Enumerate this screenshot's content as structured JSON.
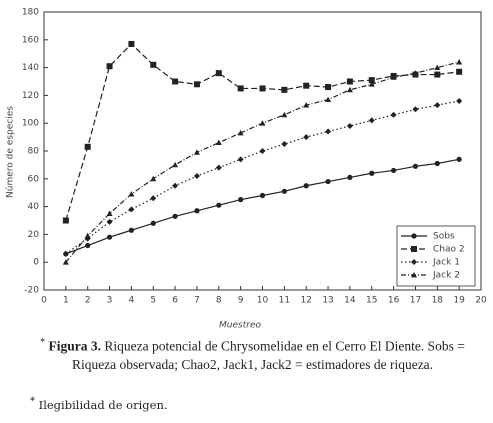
{
  "chart_data": {
    "type": "line",
    "x_label": "Muestreo",
    "y_label": "Número de especies",
    "x": [
      1,
      2,
      3,
      4,
      5,
      6,
      7,
      8,
      9,
      10,
      11,
      12,
      13,
      14,
      15,
      16,
      17,
      18,
      19
    ],
    "xlim": [
      0,
      20
    ],
    "xticks": [
      0,
      1,
      2,
      3,
      4,
      5,
      6,
      7,
      8,
      9,
      10,
      11,
      12,
      13,
      14,
      15,
      16,
      17,
      18,
      19,
      20
    ],
    "ylim": [
      -20,
      180
    ],
    "yticks": [
      -20,
      0,
      20,
      40,
      60,
      80,
      100,
      120,
      140,
      160,
      180
    ],
    "legend": "lower right",
    "series": [
      {
        "name": "Sobs",
        "color": "#222222",
        "dash": "none",
        "marker": "circle",
        "values": [
          6,
          12,
          18,
          23,
          28,
          33,
          37,
          41,
          45,
          48,
          51,
          55,
          58,
          61,
          64,
          66,
          69,
          71,
          74
        ]
      },
      {
        "name": "Chao 2",
        "color": "#222222",
        "dash": "6 3",
        "marker": "square",
        "values": [
          30,
          83,
          141,
          157,
          142,
          130,
          128,
          136,
          125,
          125,
          124,
          127,
          126,
          130,
          131,
          134,
          135,
          135,
          137
        ]
      },
      {
        "name": "Jack 1",
        "color": "#222222",
        "dash": "1.5 2.5",
        "marker": "diamond",
        "values": [
          6,
          17,
          29,
          38,
          46,
          55,
          62,
          68,
          74,
          80,
          85,
          90,
          94,
          98,
          102,
          106,
          110,
          113,
          116
        ]
      },
      {
        "name": "Jack 2",
        "color": "#222222",
        "dash": "5 2 1 2",
        "marker": "triangle",
        "values": [
          0,
          19,
          35,
          49,
          60,
          70,
          79,
          86,
          93,
          100,
          106,
          113,
          117,
          124,
          128,
          133,
          136,
          140,
          144
        ]
      }
    ]
  },
  "caption": {
    "marker": "*",
    "label": "Figura 3.",
    "text": "Riqueza potencial de Chrysomelidae en el Cerro El Diente. Sobs = Riqueza observada; Chao2, Jack1, Jack2 = estimadores de riqueza."
  },
  "footnote": {
    "marker": "*",
    "text": "Ilegibilidad de origen."
  }
}
